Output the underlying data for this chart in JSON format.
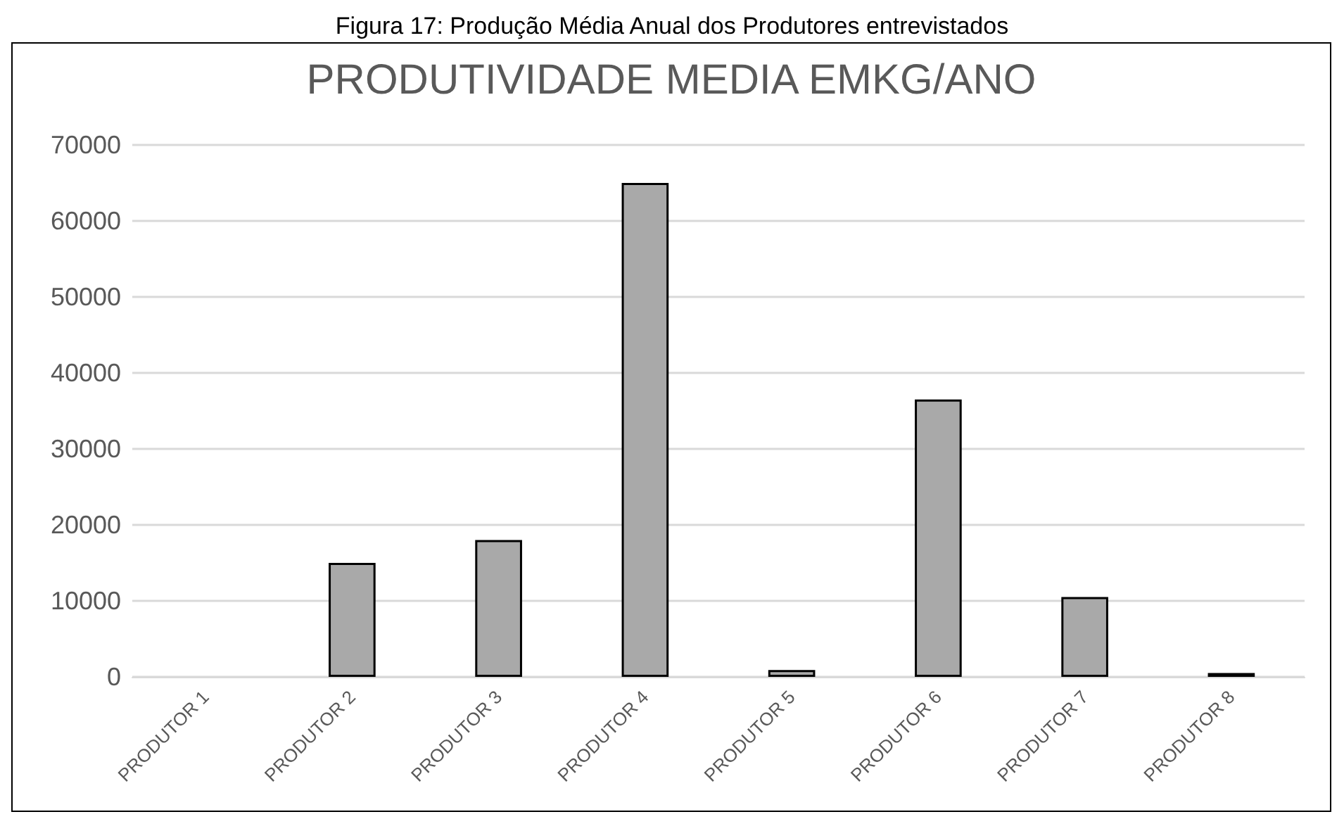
{
  "chart_data": {
    "type": "bar",
    "title": "PRODUTIVIDADE MEDIA EMKG/ANO",
    "annotations": [
      "Figura 17: Produção Média Anual dos Produtores entrevistados"
    ],
    "categories": [
      "PRODUTOR 1",
      "PRODUTOR 2",
      "PRODUTOR 3",
      "PRODUTOR 4",
      "PRODUTOR 5",
      "PRODUTOR 6",
      "PRODUTOR 7",
      "PRODUTOR 8"
    ],
    "values": [
      null,
      15000,
      18000,
      65000,
      900,
      36500,
      10500,
      500
    ],
    "color": "#a9a9a9",
    "ylim": [
      0,
      70000
    ],
    "yticks": [
      0,
      10000,
      20000,
      30000,
      40000,
      50000,
      60000,
      70000
    ],
    "grid": "y"
  }
}
